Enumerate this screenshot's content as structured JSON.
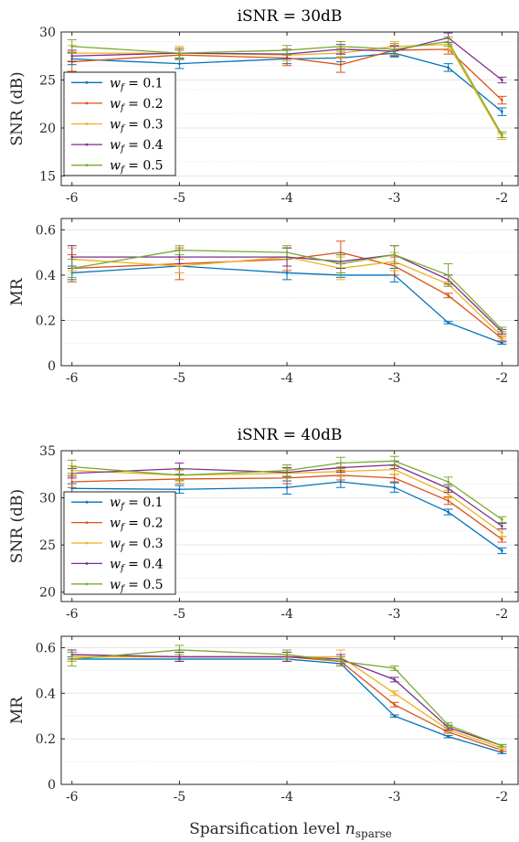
{
  "figure": {
    "xlabel_main": "Sparsification level ",
    "xlabel_var": "n",
    "xlabel_sub": "sparse"
  },
  "colors": [
    "#0072BD",
    "#D95319",
    "#EDB120",
    "#7E2F8E",
    "#77AC30"
  ],
  "chart_data": [
    {
      "type": "line",
      "title": "iSNR = 30dB",
      "ylabel": "SNR (dB)",
      "xlim": [
        -6.1,
        -1.85
      ],
      "ylim": [
        14,
        30
      ],
      "xticks": [
        -6,
        -5,
        -4,
        -3,
        -2
      ],
      "yticks": [
        15,
        20,
        25,
        30
      ],
      "legend": "lower-left",
      "x": [
        -6,
        -5,
        -4,
        -3.5,
        -3,
        -2.5,
        -2
      ],
      "series": [
        {
          "name": "w_f = 0.1",
          "values": [
            27.2,
            26.7,
            27.2,
            27.3,
            27.8,
            26.3,
            21.7
          ],
          "err": [
            0.6,
            0.5,
            0.5,
            0.4,
            0.4,
            0.4,
            0.4
          ]
        },
        {
          "name": "w_f = 0.2",
          "values": [
            26.9,
            27.6,
            27.3,
            26.6,
            28.1,
            28.2,
            22.9
          ],
          "err": [
            1.0,
            0.5,
            0.8,
            0.8,
            0.5,
            0.5,
            0.4
          ]
        },
        {
          "name": "w_f = 0.3",
          "values": [
            27.8,
            27.8,
            27.6,
            27.8,
            28.5,
            28.7,
            19.1
          ],
          "err": [
            0.8,
            0.7,
            0.6,
            0.5,
            0.5,
            0.6,
            0.3
          ]
        },
        {
          "name": "w_f = 0.4",
          "values": [
            27.5,
            27.8,
            27.7,
            28.2,
            28.0,
            29.4,
            25.0
          ],
          "err": [
            0.6,
            0.5,
            0.5,
            0.5,
            0.5,
            0.5,
            0.3
          ]
        },
        {
          "name": "w_f = 0.5",
          "values": [
            28.5,
            27.8,
            28.1,
            28.5,
            28.2,
            29.0,
            19.3
          ],
          "err": [
            0.7,
            0.5,
            0.5,
            0.5,
            0.6,
            0.5,
            0.3
          ]
        }
      ]
    },
    {
      "type": "line",
      "title": "",
      "ylabel": "MR",
      "xlim": [
        -6.1,
        -1.85
      ],
      "ylim": [
        0,
        0.65
      ],
      "xticks": [
        -6,
        -5,
        -4,
        -3,
        -2
      ],
      "yticks": [
        0,
        0.2,
        0.4,
        0.6
      ],
      "x": [
        -6,
        -5,
        -4,
        -3.5,
        -3,
        -2.5,
        -2
      ],
      "series": [
        {
          "name": "w_f = 0.1",
          "values": [
            0.41,
            0.44,
            0.41,
            0.4,
            0.4,
            0.19,
            0.1
          ],
          "err": [
            0.03,
            0.03,
            0.03,
            0.01,
            0.03,
            0.005,
            0.005
          ]
        },
        {
          "name": "w_f = 0.2",
          "values": [
            0.43,
            0.45,
            0.47,
            0.5,
            0.44,
            0.31,
            0.12
          ],
          "err": [
            0.06,
            0.07,
            0.05,
            0.05,
            0.04,
            0.01,
            0.01
          ]
        },
        {
          "name": "w_f = 0.3",
          "values": [
            0.47,
            0.44,
            0.48,
            0.43,
            0.46,
            0.36,
            0.13
          ],
          "err": [
            0.05,
            0.03,
            0.04,
            0.05,
            0.04,
            0.01,
            0.01
          ]
        },
        {
          "name": "w_f = 0.4",
          "values": [
            0.48,
            0.48,
            0.48,
            0.46,
            0.49,
            0.38,
            0.15
          ],
          "err": [
            0.05,
            0.03,
            0.04,
            0.03,
            0.04,
            0.02,
            0.01
          ]
        },
        {
          "name": "w_f = 0.5",
          "values": [
            0.43,
            0.51,
            0.5,
            0.45,
            0.49,
            0.4,
            0.16
          ],
          "err": [
            0.04,
            0.02,
            0.03,
            0.04,
            0.04,
            0.05,
            0.01
          ]
        }
      ]
    },
    {
      "type": "line",
      "title": "iSNR = 40dB",
      "ylabel": "SNR (dB)",
      "xlim": [
        -6.1,
        -1.85
      ],
      "ylim": [
        19,
        35
      ],
      "xticks": [
        -6,
        -5,
        -4,
        -3,
        -2
      ],
      "yticks": [
        20,
        25,
        30,
        35
      ],
      "legend": "lower-left",
      "x": [
        -6,
        -5,
        -4,
        -3.5,
        -3,
        -2.5,
        -2
      ],
      "series": [
        {
          "name": "w_f = 0.1",
          "values": [
            31.0,
            30.9,
            31.1,
            31.7,
            31.1,
            28.5,
            24.4
          ],
          "err": [
            0.5,
            0.4,
            0.7,
            0.6,
            0.5,
            0.3,
            0.3
          ]
        },
        {
          "name": "w_f = 0.2",
          "values": [
            31.7,
            32.0,
            32.1,
            32.4,
            32.1,
            29.7,
            25.6
          ],
          "err": [
            0.6,
            0.5,
            0.6,
            0.5,
            0.4,
            0.4,
            0.3
          ]
        },
        {
          "name": "w_f = 0.3",
          "values": [
            32.9,
            32.4,
            32.6,
            32.8,
            33.0,
            30.4,
            26.3
          ],
          "err": [
            0.5,
            0.5,
            0.5,
            0.5,
            0.5,
            0.4,
            0.4
          ]
        },
        {
          "name": "w_f = 0.4",
          "values": [
            32.6,
            33.1,
            32.7,
            33.2,
            33.5,
            31.0,
            27.0
          ],
          "err": [
            0.5,
            0.6,
            0.5,
            0.5,
            0.4,
            0.4,
            0.3
          ]
        },
        {
          "name": "w_f = 0.5",
          "values": [
            33.3,
            32.4,
            32.9,
            33.7,
            33.9,
            31.7,
            27.7
          ],
          "err": [
            0.7,
            0.6,
            0.6,
            0.6,
            0.5,
            0.5,
            0.3
          ]
        }
      ]
    },
    {
      "type": "line",
      "title": "",
      "ylabel": "MR",
      "xlim": [
        -6.1,
        -1.85
      ],
      "ylim": [
        0,
        0.65
      ],
      "xticks": [
        -6,
        -5,
        -4,
        -3,
        -2
      ],
      "yticks": [
        0,
        0.2,
        0.4,
        0.6
      ],
      "x": [
        -6,
        -5,
        -4,
        -3.5,
        -3,
        -2.5,
        -2
      ],
      "series": [
        {
          "name": "w_f = 0.1",
          "values": [
            0.55,
            0.55,
            0.55,
            0.53,
            0.3,
            0.21,
            0.14
          ],
          "err": [
            0.01,
            0.01,
            0.01,
            0.01,
            0.005,
            0.005,
            0.005
          ]
        },
        {
          "name": "w_f = 0.2",
          "values": [
            0.56,
            0.56,
            0.56,
            0.54,
            0.35,
            0.23,
            0.15
          ],
          "err": [
            0.02,
            0.02,
            0.02,
            0.02,
            0.01,
            0.005,
            0.005
          ]
        },
        {
          "name": "w_f = 0.3",
          "values": [
            0.56,
            0.56,
            0.56,
            0.56,
            0.4,
            0.24,
            0.16
          ],
          "err": [
            0.02,
            0.02,
            0.02,
            0.03,
            0.01,
            0.01,
            0.005
          ]
        },
        {
          "name": "w_f = 0.4",
          "values": [
            0.57,
            0.56,
            0.56,
            0.55,
            0.46,
            0.25,
            0.17
          ],
          "err": [
            0.02,
            0.02,
            0.02,
            0.02,
            0.01,
            0.01,
            0.005
          ]
        },
        {
          "name": "w_f = 0.5",
          "values": [
            0.55,
            0.59,
            0.57,
            0.54,
            0.51,
            0.26,
            0.17
          ],
          "err": [
            0.03,
            0.02,
            0.02,
            0.02,
            0.01,
            0.01,
            0.005
          ]
        }
      ]
    }
  ]
}
